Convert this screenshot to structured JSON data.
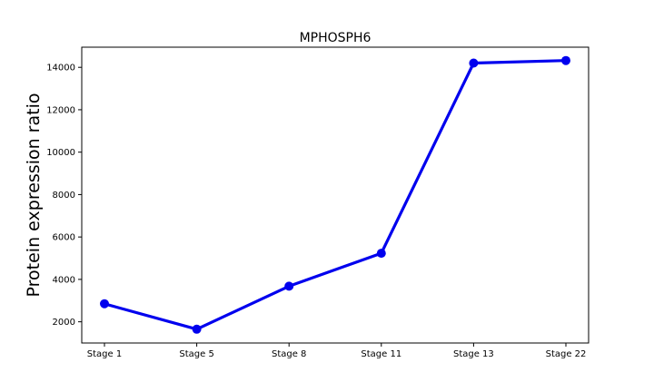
{
  "chart_data": {
    "type": "line",
    "title": "MPHOSPH6",
    "xlabel": "",
    "ylabel": "Protein expression ratio",
    "categories": [
      "Stage 1",
      "Stage 5",
      "Stage 8",
      "Stage 11",
      "Stage 13",
      "Stage 22"
    ],
    "series": [
      {
        "values": [
          2850,
          1650,
          3680,
          5230,
          14200,
          14320
        ],
        "color": "#0000ee"
      }
    ],
    "ylim": [
      1000,
      14950
    ],
    "yticks": [
      2000,
      4000,
      6000,
      8000,
      10000,
      12000,
      14000
    ],
    "grid": false
  }
}
